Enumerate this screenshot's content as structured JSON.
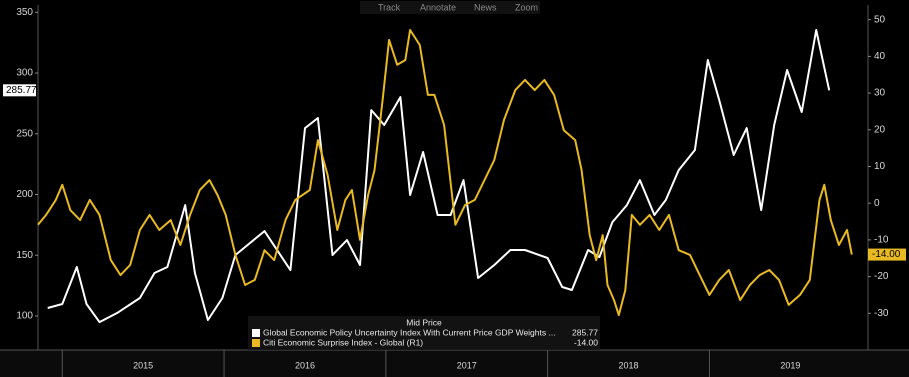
{
  "toolbar": [
    "Track",
    "Annotate",
    "News",
    "Zoom"
  ],
  "chart_data": {
    "type": "line",
    "legend_title": "Mid Price",
    "legend": "bottom-center",
    "grid": false,
    "xlim": [
      2014.85,
      2019.98
    ],
    "xticks": [
      {
        "value": 2015.5,
        "label": "2015"
      },
      {
        "value": 2016.5,
        "label": "2016"
      },
      {
        "value": 2017.5,
        "label": "2017"
      },
      {
        "value": 2018.5,
        "label": "2018"
      },
      {
        "value": 2019.5,
        "label": "2019"
      }
    ],
    "ylim": [
      72,
      356
    ],
    "yticks": [
      100,
      150,
      200,
      250,
      300,
      350
    ],
    "y2lim": [
      -40,
      54
    ],
    "y2ticks": [
      -30,
      -20,
      -10,
      0,
      10,
      20,
      30,
      40,
      50
    ],
    "series": [
      {
        "name": "Global Economic Policy Uncertainty Index With Current Price GDP Weights ...",
        "color": "#ffffff",
        "axis": "y",
        "last_value_label": "285.77",
        "x": [
          2014.91,
          2015.0,
          2015.09,
          2015.15,
          2015.23,
          2015.34,
          2015.48,
          2015.57,
          2015.65,
          2015.76,
          2015.82,
          2015.9,
          2015.99,
          2016.07,
          2016.25,
          2016.41,
          2016.5,
          2016.58,
          2016.67,
          2016.76,
          2016.84,
          2016.91,
          2016.99,
          2017.09,
          2017.15,
          2017.23,
          2017.32,
          2017.4,
          2017.48,
          2017.57,
          2017.67,
          2017.77,
          2017.86,
          2018.0,
          2018.09,
          2018.15,
          2018.25,
          2018.32,
          2018.4,
          2018.49,
          2018.57,
          2018.66,
          2018.73,
          2018.81,
          2018.91,
          2018.99,
          2019.06,
          2019.15,
          2019.23,
          2019.32,
          2019.4,
          2019.48,
          2019.57,
          2019.66,
          2019.74
        ],
        "values": [
          106.6,
          109.9,
          140.3,
          109.9,
          95,
          102.5,
          114.8,
          135.4,
          140.3,
          191.3,
          135.4,
          96.7,
          114.8,
          150.2,
          169.9,
          137.8,
          254.7,
          263,
          150.2,
          162.5,
          142,
          269.5,
          257.2,
          280.2,
          199.6,
          235,
          183.1,
          183.1,
          211.9,
          131.3,
          142,
          154.3,
          154.3,
          147.7,
          123.9,
          121.4,
          154.3,
          148.5,
          177.3,
          191.3,
          211.9,
          183.1,
          195.5,
          220.1,
          236.6,
          310.7,
          277.8,
          232.5,
          254.7,
          187.2,
          257.2,
          302.5,
          267.9,
          335.4,
          285.77
        ]
      },
      {
        "name": "Citi Economic Surprise Index - Global  (R1)",
        "color": "#e8b923",
        "axis": "y2",
        "last_value_label": "-14.00",
        "x": [
          2014.85,
          2014.9,
          2014.96,
          2015.0,
          2015.05,
          2015.11,
          2015.17,
          2015.23,
          2015.3,
          2015.36,
          2015.42,
          2015.48,
          2015.54,
          2015.6,
          2015.67,
          2015.73,
          2015.79,
          2015.85,
          2015.91,
          2015.96,
          2016.01,
          2016.07,
          2016.13,
          2016.19,
          2016.25,
          2016.31,
          2016.38,
          2016.44,
          2016.53,
          2016.58,
          2016.64,
          2016.7,
          2016.75,
          2016.79,
          2016.84,
          2016.89,
          2016.93,
          2016.98,
          2017.02,
          2017.07,
          2017.12,
          2017.15,
          2017.21,
          2017.26,
          2017.3,
          2017.36,
          2017.43,
          2017.49,
          2017.55,
          2017.61,
          2017.67,
          2017.73,
          2017.8,
          2017.86,
          2017.92,
          2017.98,
          2018.04,
          2018.1,
          2018.17,
          2018.21,
          2018.26,
          2018.3,
          2018.34,
          2018.37,
          2018.41,
          2018.44,
          2018.48,
          2018.52,
          2018.57,
          2018.63,
          2018.69,
          2018.75,
          2018.81,
          2018.88,
          2018.94,
          2019.0,
          2019.06,
          2019.12,
          2019.19,
          2019.25,
          2019.31,
          2019.37,
          2019.43,
          2019.49,
          2019.56,
          2019.62,
          2019.65,
          2019.68,
          2019.71,
          2019.75,
          2019.8,
          2019.85,
          2019.88
        ],
        "values": [
          -5.9,
          -3.2,
          0.9,
          5,
          -1.9,
          -4.6,
          0.9,
          -3.2,
          -15.5,
          -19.6,
          -16.8,
          -7.3,
          -3.2,
          -7.3,
          -4.6,
          -11.4,
          -3.2,
          3.6,
          6.3,
          2.2,
          -3.2,
          -14.1,
          -22.3,
          -20.9,
          -12.8,
          -15.5,
          -4.6,
          0.9,
          3.6,
          17.2,
          7.7,
          -7.3,
          0.9,
          3.6,
          -10,
          2.2,
          9,
          28.1,
          44.5,
          37.7,
          39,
          47.2,
          43.1,
          29.5,
          29.5,
          21.3,
          -5.9,
          -0.5,
          0.9,
          6.3,
          11.8,
          22.7,
          30.8,
          33.6,
          30.8,
          33.6,
          29.5,
          19.9,
          17.2,
          9,
          -8.7,
          -15.5,
          -8.7,
          -22.3,
          -26.4,
          -30.5,
          -23.7,
          -3.2,
          -5.9,
          -3.2,
          -7.3,
          -3.2,
          -12.8,
          -14.1,
          -19.6,
          -25,
          -20.9,
          -18.2,
          -26.4,
          -22.3,
          -19.6,
          -18.2,
          -20.9,
          -27.7,
          -25,
          -20.9,
          -10,
          0.9,
          5,
          -4.6,
          -11.4,
          -7.3,
          -14
        ]
      }
    ]
  }
}
